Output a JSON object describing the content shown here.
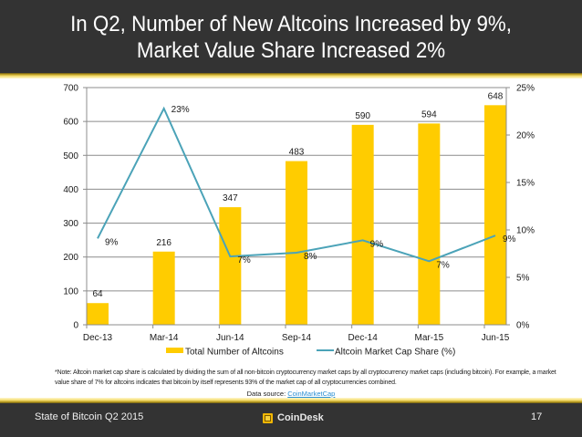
{
  "header": {
    "title_line1": "In Q2, Number of New Altcoins Increased by 9%,",
    "title_line2": "Market Value Share Increased 2%"
  },
  "colors": {
    "header_bg": "#333333",
    "bar": "#ffcc00",
    "line": "#4ba3b8",
    "gold_accent": "#e8c840",
    "link": "#2a8fd3"
  },
  "chart_data": {
    "type": "bar",
    "title": "",
    "categories": [
      "Dec-13",
      "Mar-14",
      "Jun-14",
      "Sep-14",
      "Dec-14",
      "Mar-15",
      "Jun-15"
    ],
    "series": [
      {
        "name": "Total Number of Altcoins",
        "type": "bar",
        "axis": "left",
        "values": [
          64,
          216,
          347,
          483,
          590,
          594,
          648
        ],
        "labels": [
          "64",
          "216",
          "347",
          "483",
          "590",
          "594",
          "648"
        ]
      },
      {
        "name": "Altcoin Market Cap Share (%)",
        "type": "line",
        "axis": "right",
        "values": [
          9.1,
          22.8,
          7.2,
          7.6,
          8.9,
          6.7,
          9.4
        ],
        "labels": [
          "9%",
          "23%",
          "7%",
          "8%",
          "9%",
          "7%",
          "9%"
        ]
      }
    ],
    "left_axis": {
      "ylim": [
        0,
        700
      ],
      "ticks": [
        0,
        100,
        200,
        300,
        400,
        500,
        600,
        700
      ],
      "tick_labels": [
        "0",
        "100",
        "200",
        "300",
        "400",
        "500",
        "600",
        "700"
      ]
    },
    "right_axis": {
      "ylim": [
        0,
        25
      ],
      "ticks": [
        0,
        5,
        10,
        15,
        20,
        25
      ],
      "tick_labels": [
        "0%",
        "5%",
        "10%",
        "15%",
        "20%",
        "25%"
      ]
    },
    "grid": true,
    "legend": {
      "position": "bottom",
      "entries": [
        "Total Number of Altcoins",
        "Altcoin Market Cap Share (%)"
      ]
    }
  },
  "note": "*Note: Altcoin market cap share is calculated by dividing the sum of all non-bitcoin cryptocurrency market caps by all cryptocurrency market caps (including bitcoin). For example, a market value share of 7% for altcoins indicates that bitcoin by itself represents 93% of the market cap of all cryptocurrencies combined.",
  "source": {
    "prefix": "Data source: ",
    "link_text": "CoinMarketCap"
  },
  "footer": {
    "left_text": "State of Bitcoin Q2 2015",
    "logo_text": "CoinDesk",
    "logo_icon": "coindesk-logo-icon",
    "page_number": "17"
  }
}
